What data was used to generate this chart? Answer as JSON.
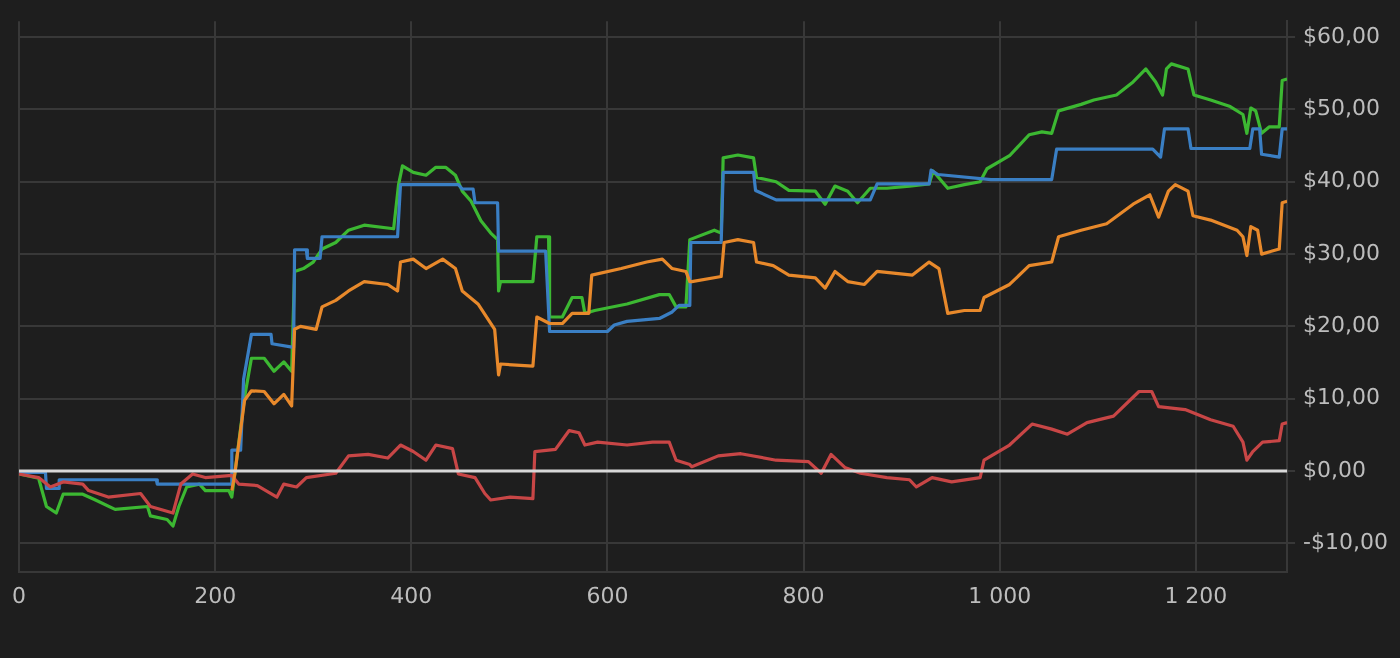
{
  "chart_data": {
    "type": "line",
    "xlim": [
      0,
      1293
    ],
    "ylim": [
      -13.9,
      62.2
    ],
    "xticks": [
      0,
      200,
      400,
      600,
      800,
      {
        "value": 1000,
        "label": "1 000"
      },
      {
        "value": 1200,
        "label": "1 200"
      }
    ],
    "yticks": [
      {
        "value": -10,
        "label": "-$10,00"
      },
      {
        "value": 0,
        "label": "$0,00"
      },
      {
        "value": 10,
        "label": "$10,00"
      },
      {
        "value": 20,
        "label": "$20,00"
      },
      {
        "value": 30,
        "label": "$30,00"
      },
      {
        "value": 40,
        "label": "$40,00"
      },
      {
        "value": 50,
        "label": "$50,00"
      },
      {
        "value": 60,
        "label": "$60,00"
      }
    ],
    "grid": true,
    "marker": "none",
    "ref_lines": [
      {
        "axis": "y",
        "value": 0,
        "color": "#d8d8d8"
      }
    ],
    "series": [
      {
        "color": "#e8892b",
        "x": [
          217,
          220,
          230,
          237,
          250,
          260,
          270,
          278,
          281,
          287,
          303,
          309,
          323,
          336,
          352,
          376,
          386,
          389,
          402,
          415,
          432,
          445,
          452,
          468,
          485,
          489,
          491,
          524,
          528,
          541,
          554,
          564,
          581,
          584,
          614,
          640,
          656,
          666,
          680,
          684,
          686,
          716,
          719,
          733,
          749,
          752,
          769,
          785,
          812,
          822,
          832,
          845,
          862,
          875,
          911,
          928,
          938,
          947,
          964,
          980,
          984,
          1010,
          1030,
          1053,
          1060,
          1083,
          1109,
          1136,
          1153,
          1162,
          1172,
          1179,
          1192,
          1197,
          1215,
          1242,
          1248,
          1252,
          1256,
          1263,
          1267,
          1285,
          1288,
          1293
        ],
        "values": [
          -2.7,
          -0.4,
          9.8,
          11.1,
          11,
          9.3,
          10.6,
          9,
          19.6,
          20,
          19.6,
          22.7,
          23.6,
          24.9,
          26.2,
          25.8,
          24.9,
          28.9,
          29.3,
          28,
          29.3,
          28,
          24.9,
          23.1,
          19.6,
          13.3,
          14.8,
          14.5,
          21.3,
          20.4,
          20.4,
          21.8,
          21.8,
          27.1,
          28,
          28.9,
          29.3,
          28,
          27.6,
          26.2,
          26.2,
          26.9,
          31.6,
          32,
          31.6,
          28.9,
          28.4,
          27.1,
          26.7,
          25.3,
          27.6,
          26.2,
          25.8,
          27.6,
          27.1,
          28.9,
          28,
          21.8,
          22.2,
          22.2,
          24,
          25.8,
          28.4,
          28.9,
          32.4,
          33.3,
          34.2,
          36.9,
          38.2,
          35.1,
          38.7,
          39.6,
          38.7,
          35.3,
          34.7,
          33.3,
          32.4,
          29.8,
          33.8,
          33.3,
          30,
          30.7,
          37.1,
          37.3
        ]
      },
      {
        "color": "#c84646",
        "x": [
          0,
          20,
          32,
          45,
          65,
          71,
          91,
          124,
          134,
          157,
          165,
          177,
          190,
          217,
          224,
          243,
          263,
          270,
          283,
          293,
          323,
          336,
          356,
          376,
          389,
          402,
          415,
          425,
          442,
          448,
          465,
          475,
          481,
          501,
          524,
          526,
          547,
          561,
          571,
          577,
          590,
          620,
          646,
          663,
          670,
          684,
          686,
          713,
          736,
          772,
          805,
          818,
          828,
          842,
          858,
          885,
          908,
          915,
          931,
          951,
          980,
          984,
          1010,
          1033,
          1053,
          1069,
          1089,
          1116,
          1142,
          1155,
          1162,
          1189,
          1215,
          1238,
          1248,
          1252,
          1258,
          1268,
          1285,
          1288,
          1293
        ],
        "values": [
          -0.4,
          -0.9,
          -2.2,
          -1.5,
          -1.8,
          -2.7,
          -3.6,
          -3.1,
          -4.9,
          -5.8,
          -1.8,
          -0.4,
          -0.9,
          -0.6,
          -1.8,
          -2,
          -3.6,
          -1.8,
          -2.2,
          -0.9,
          -0.3,
          2.1,
          2.3,
          1.8,
          3.6,
          2.7,
          1.5,
          3.6,
          3.1,
          -0.4,
          -0.9,
          -3.1,
          -4,
          -3.6,
          -3.8,
          2.7,
          3,
          5.6,
          5.3,
          3.6,
          4,
          3.6,
          4,
          4,
          1.5,
          0.9,
          0.6,
          2.1,
          2.4,
          1.5,
          1.3,
          -0.3,
          2.3,
          0.5,
          -0.3,
          -0.9,
          -1.2,
          -2.2,
          -0.9,
          -1.5,
          -0.9,
          1.5,
          3.6,
          6.5,
          5.8,
          5.1,
          6.7,
          7.6,
          11,
          11,
          8.9,
          8.5,
          7.1,
          6.2,
          4,
          1.5,
          2.7,
          4,
          4.2,
          6.5,
          6.7
        ]
      },
      {
        "color": "#3a7fc4",
        "x": [
          0,
          27,
          28,
          40,
          41,
          140,
          141,
          216,
          217,
          226,
          229,
          237,
          257,
          258,
          280,
          281,
          293,
          294,
          307,
          309,
          386,
          389,
          448,
          452,
          463,
          465,
          488,
          489,
          537,
          541,
          600,
          607,
          620,
          653,
          666,
          673,
          684,
          685,
          716,
          718,
          749,
          751,
          772,
          868,
          875,
          928,
          930,
          937,
          991,
          1053,
          1058,
          1156,
          1164,
          1168,
          1192,
          1195,
          1255,
          1258,
          1265,
          1267,
          1285,
          1288,
          1293
        ],
        "values": [
          -0.2,
          -0.2,
          -2.4,
          -2.4,
          -1.2,
          -1.2,
          -1.8,
          -1.8,
          2.9,
          2.9,
          12.7,
          18.9,
          18.9,
          17.6,
          17.1,
          30.6,
          30.6,
          29.4,
          29.4,
          32.4,
          32.4,
          39.6,
          39.6,
          39,
          39,
          37.1,
          37.1,
          30.4,
          30.4,
          19.3,
          19.3,
          20.2,
          20.7,
          21.1,
          22,
          22.9,
          22.9,
          31.6,
          31.6,
          41.3,
          41.3,
          38.8,
          37.5,
          37.5,
          39.7,
          39.7,
          41.6,
          41,
          40.3,
          40.3,
          44.5,
          44.5,
          43.4,
          47.3,
          47.3,
          44.6,
          44.6,
          47.3,
          47.3,
          43.8,
          43.4,
          47.3,
          47.3
        ]
      },
      {
        "color": "#3cb832",
        "x": [
          0,
          20,
          28,
          38,
          45,
          65,
          78,
          98,
          131,
          134,
          151,
          157,
          163,
          171,
          184,
          190,
          214,
          217,
          220,
          230,
          237,
          250,
          260,
          270,
          278,
          281,
          290,
          300,
          309,
          323,
          336,
          352,
          382,
          387,
          391,
          402,
          415,
          425,
          435,
          445,
          452,
          461,
          471,
          481,
          488,
          489,
          491,
          524,
          528,
          540,
          541,
          554,
          564,
          574,
          577,
          587,
          620,
          653,
          663,
          670,
          680,
          684,
          709,
          716,
          718,
          733,
          749,
          752,
          772,
          785,
          812,
          822,
          832,
          845,
          855,
          868,
          885,
          908,
          928,
          932,
          947,
          964,
          980,
          987,
          1010,
          1030,
          1043,
          1053,
          1060,
          1083,
          1096,
          1119,
          1136,
          1149,
          1159,
          1166,
          1170,
          1175,
          1192,
          1198,
          1215,
          1235,
          1248,
          1252,
          1256,
          1261,
          1267,
          1275,
          1285,
          1288,
          1293
        ],
        "values": [
          -0.4,
          -1,
          -4.9,
          -5.8,
          -3.2,
          -3.2,
          -4,
          -5.3,
          -4.9,
          -6.2,
          -6.7,
          -7.6,
          -4.9,
          -2.2,
          -1.8,
          -2.7,
          -2.7,
          -3.6,
          -0.4,
          10.2,
          15.6,
          15.6,
          13.8,
          15.1,
          13.8,
          27.6,
          28,
          28.9,
          30.7,
          31.6,
          33.3,
          34,
          33.5,
          39.6,
          42.2,
          41.3,
          40.9,
          42,
          42,
          40.9,
          38.7,
          37.3,
          34.6,
          32.9,
          32,
          24.9,
          26.2,
          26.2,
          32.4,
          32.4,
          21.3,
          21.3,
          24,
          24,
          21.8,
          22.2,
          23.1,
          24.4,
          24.4,
          22.7,
          22.7,
          32,
          33.3,
          32.9,
          43.3,
          43.7,
          43.3,
          40.6,
          40,
          38.8,
          38.7,
          36.9,
          39.4,
          38.7,
          37.1,
          39.1,
          39.1,
          39.4,
          39.7,
          41.5,
          39.1,
          39.6,
          40,
          41.8,
          43.6,
          46.5,
          46.9,
          46.7,
          49.8,
          50.7,
          51.3,
          52,
          53.8,
          55.6,
          53.8,
          52,
          55.6,
          56.3,
          55.6,
          52,
          51.3,
          50.4,
          49.3,
          46.7,
          50.2,
          49.8,
          46.7,
          47.6,
          47.6,
          54,
          54.2
        ]
      }
    ]
  }
}
